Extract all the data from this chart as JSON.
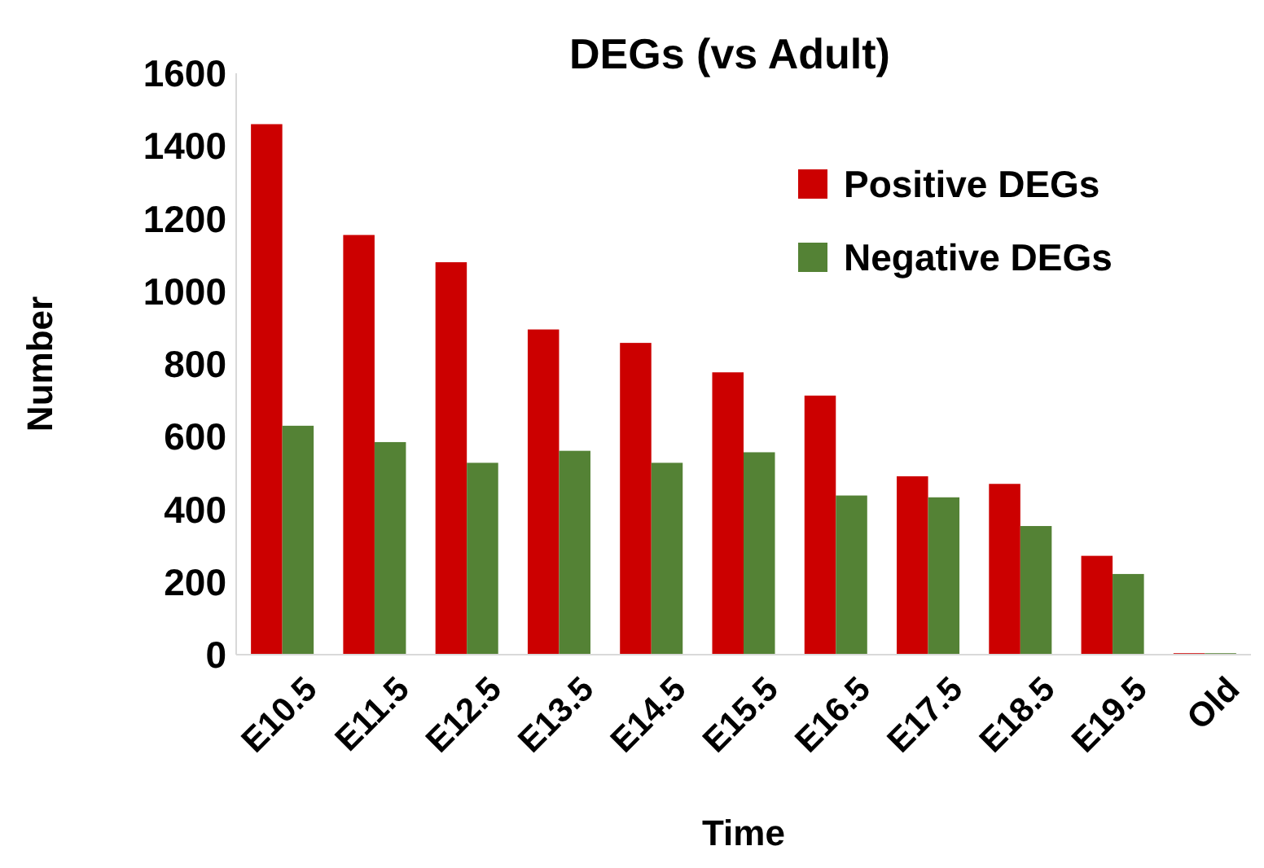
{
  "chart_data": {
    "type": "bar",
    "title": "DEGs (vs Adult)",
    "xlabel": "Time",
    "ylabel": "Number",
    "categories": [
      "E10.5",
      "E11.5",
      "E12.5",
      "E13.5",
      "E14.5",
      "E15.5",
      "E16.5",
      "E17.5",
      "E18.5",
      "E19.5",
      "Old"
    ],
    "series": [
      {
        "name": "Positive DEGs",
        "color": "#cc0000",
        "values": [
          1460,
          1155,
          1080,
          895,
          858,
          777,
          713,
          491,
          470,
          272,
          4
        ]
      },
      {
        "name": "Negative DEGs",
        "color": "#548235",
        "values": [
          630,
          585,
          528,
          561,
          528,
          557,
          438,
          433,
          354,
          222,
          4
        ]
      }
    ],
    "ylim": [
      0,
      1600
    ],
    "yticks": [
      0,
      200,
      400,
      600,
      800,
      1000,
      1200,
      1400,
      1600
    ],
    "grid": false,
    "legend": "top right"
  }
}
